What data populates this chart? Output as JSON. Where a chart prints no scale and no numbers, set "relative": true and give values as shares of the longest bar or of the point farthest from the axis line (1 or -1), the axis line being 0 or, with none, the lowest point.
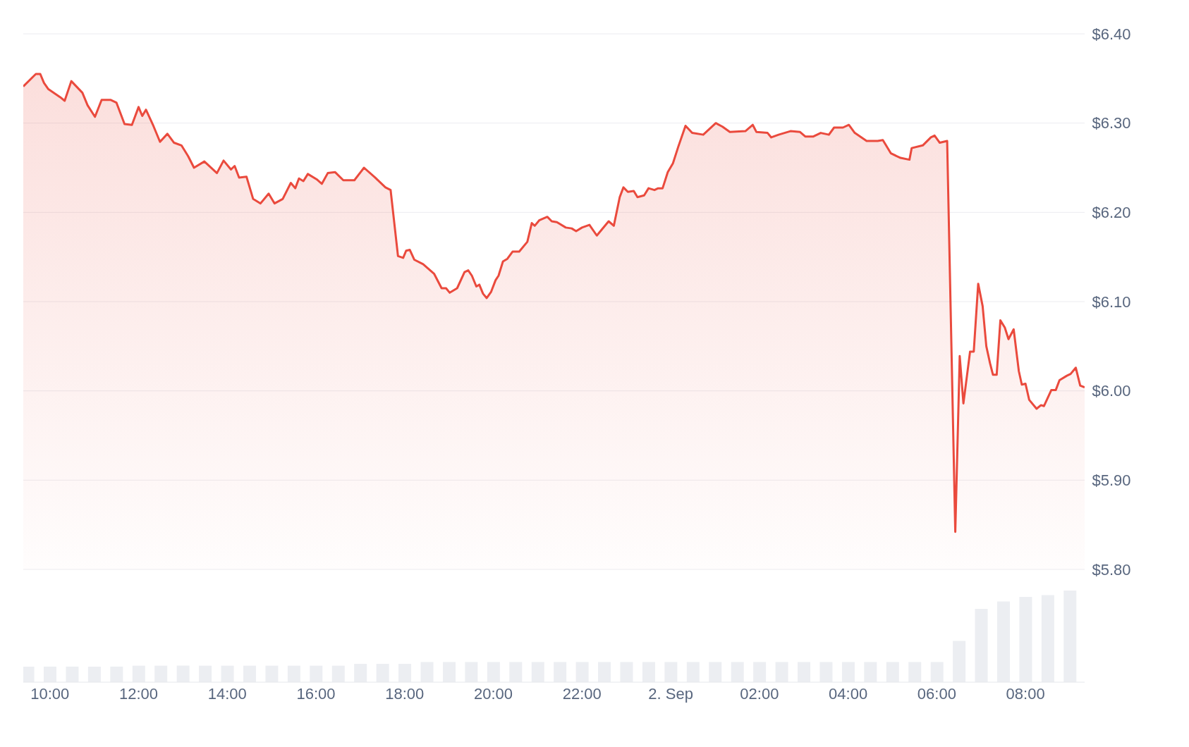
{
  "chart_data": [
    {
      "type": "area",
      "color": "#ea4a3d",
      "xlim": [
        "--09-01T09:24",
        "--09-02T09:20"
      ],
      "ylim": [
        5.8,
        6.4
      ],
      "yticks": [
        {
          "value": 5.8,
          "label": "$5.80"
        },
        {
          "value": 5.9,
          "label": "$5.90"
        },
        {
          "value": 6.0,
          "label": "$6.00"
        },
        {
          "value": 6.1,
          "label": "$6.10"
        },
        {
          "value": 6.2,
          "label": "$6.20"
        },
        {
          "value": 6.3,
          "label": "$6.30"
        },
        {
          "value": 6.4,
          "label": "$6.40"
        }
      ],
      "grid": "y",
      "tick_labels": "y",
      "x": [
        "--09-01T09:24",
        "--09-01T09:41",
        "--09-01T09:47",
        "--09-01T09:52",
        "--09-01T09:58",
        "--09-01T10:14",
        "--09-01T10:20",
        "--09-01T10:29",
        "--09-01T10:44",
        "--09-01T10:51",
        "--09-01T11:01",
        "--09-01T11:10",
        "--09-01T11:22",
        "--09-01T11:30",
        "--09-01T11:41",
        "--09-01T11:51",
        "--09-01T12:00",
        "--09-01T12:05",
        "--09-01T12:10",
        "--09-01T12:20",
        "--09-01T12:29",
        "--09-01T12:39",
        "--09-01T12:48",
        "--09-01T12:58",
        "--09-01T13:07",
        "--09-01T13:15",
        "--09-01T13:29",
        "--09-01T13:46",
        "--09-01T13:55",
        "--09-01T14:05",
        "--09-01T14:10",
        "--09-01T14:16",
        "--09-01T14:26",
        "--09-01T14:35",
        "--09-01T14:45",
        "--09-01T14:56",
        "--09-01T15:04",
        "--09-01T15:15",
        "--09-01T15:26",
        "--09-01T15:32",
        "--09-01T15:37",
        "--09-01T15:43",
        "--09-01T15:49",
        "--09-01T16:01",
        "--09-01T16:08",
        "--09-01T16:16",
        "--09-01T16:26",
        "--09-01T16:37",
        "--09-01T16:52",
        "--09-01T17:05",
        "--09-01T17:20",
        "--09-01T17:34",
        "--09-01T17:41",
        "--09-01T17:51",
        "--09-01T17:58",
        "--09-01T18:02",
        "--09-01T18:07",
        "--09-01T18:13",
        "--09-01T18:25",
        "--09-01T18:40",
        "--09-01T18:50",
        "--09-01T18:56",
        "--09-01T19:01",
        "--09-01T19:11",
        "--09-01T19:21",
        "--09-01T19:26",
        "--09-01T19:31",
        "--09-01T19:37",
        "--09-01T19:41",
        "--09-01T19:46",
        "--09-01T19:51",
        "--09-01T19:57",
        "--09-01T20:03",
        "--09-01T20:07",
        "--09-01T20:13",
        "--09-01T20:19",
        "--09-01T20:26",
        "--09-01T20:35",
        "--09-01T20:46",
        "--09-01T20:52",
        "--09-01T20:56",
        "--09-01T21:02",
        "--09-01T21:13",
        "--09-01T21:19",
        "--09-01T21:26",
        "--09-01T21:38",
        "--09-01T21:46",
        "--09-01T21:52",
        "--09-01T22:00",
        "--09-01T22:10",
        "--09-01T22:20",
        "--09-01T22:36",
        "--09-01T22:43",
        "--09-01T22:51",
        "--09-01T22:56",
        "--09-01T23:02",
        "--09-01T23:10",
        "--09-01T23:15",
        "--09-01T23:24",
        "--09-01T23:30",
        "--09-01T23:38",
        "--09-01T23:43",
        "--09-01T23:49",
        "--09-01T23:56",
        "--09-02T00:03",
        "--09-02T00:10",
        "--09-02T00:20",
        "--09-02T00:29",
        "--09-02T00:44",
        "--09-02T01:01",
        "--09-02T01:10",
        "--09-02T01:20",
        "--09-02T01:41",
        "--09-02T01:51",
        "--09-02T01:56",
        "--09-02T02:11",
        "--09-02T02:16",
        "--09-02T02:26",
        "--09-02T02:42",
        "--09-02T02:55",
        "--09-02T03:02",
        "--09-02T03:13",
        "--09-02T03:23",
        "--09-02T03:34",
        "--09-02T03:41",
        "--09-02T03:53",
        "--09-02T04:01",
        "--09-02T04:09",
        "--09-02T04:25",
        "--09-02T04:40",
        "--09-02T04:47",
        "--09-02T04:58",
        "--09-02T05:11",
        "--09-02T05:23",
        "--09-02T05:26",
        "--09-02T05:41",
        "--09-02T05:52",
        "--09-02T05:57",
        "--09-02T06:04",
        "--09-02T06:14",
        "--09-02T06:25",
        "--09-02T06:31",
        "--09-02T06:36",
        "--09-02T06:45",
        "--09-02T06:50",
        "--09-02T06:56",
        "--09-02T07:02",
        "--09-02T07:07",
        "--09-02T07:12",
        "--09-02T07:16",
        "--09-02T07:21",
        "--09-02T07:26",
        "--09-02T07:32",
        "--09-02T07:37",
        "--09-02T07:44",
        "--09-02T07:51",
        "--09-02T07:55",
        "--09-02T08:00",
        "--09-02T08:05",
        "--09-02T08:15",
        "--09-02T08:21",
        "--09-02T08:25",
        "--09-02T08:35",
        "--09-02T08:41",
        "--09-02T08:46",
        "--09-02T08:56",
        "--09-02T09:01",
        "--09-02T09:08",
        "--09-02T09:14",
        "--09-02T09:20"
      ],
      "values": [
        6.341,
        6.355,
        6.355,
        6.345,
        6.338,
        6.329,
        6.325,
        6.347,
        6.334,
        6.32,
        6.307,
        6.326,
        6.326,
        6.323,
        6.299,
        6.298,
        6.318,
        6.308,
        6.315,
        6.297,
        6.279,
        6.288,
        6.278,
        6.275,
        6.263,
        6.25,
        6.257,
        6.244,
        6.258,
        6.248,
        6.252,
        6.239,
        6.24,
        6.215,
        6.21,
        6.221,
        6.21,
        6.215,
        6.233,
        6.227,
        6.238,
        6.235,
        6.243,
        6.237,
        6.232,
        6.244,
        6.245,
        6.236,
        6.236,
        6.25,
        6.239,
        6.228,
        6.225,
        6.151,
        6.149,
        6.157,
        6.158,
        6.147,
        6.142,
        6.131,
        6.115,
        6.115,
        6.11,
        6.115,
        6.133,
        6.135,
        6.129,
        6.117,
        6.119,
        6.109,
        6.104,
        6.111,
        6.124,
        6.129,
        6.145,
        6.148,
        6.156,
        6.156,
        6.167,
        6.188,
        6.185,
        6.191,
        6.195,
        6.19,
        6.189,
        6.183,
        6.182,
        6.179,
        6.183,
        6.186,
        6.174,
        6.19,
        6.185,
        6.217,
        6.228,
        6.223,
        6.224,
        6.217,
        6.219,
        6.227,
        6.225,
        6.227,
        6.227,
        6.245,
        6.255,
        6.273,
        6.297,
        6.289,
        6.287,
        6.3,
        6.296,
        6.29,
        6.291,
        6.298,
        6.29,
        6.289,
        6.284,
        6.287,
        6.291,
        6.29,
        6.285,
        6.285,
        6.289,
        6.287,
        6.295,
        6.295,
        6.298,
        6.289,
        6.28,
        6.28,
        6.281,
        6.266,
        6.261,
        6.259,
        6.272,
        6.275,
        6.284,
        6.286,
        6.278,
        6.28,
        5.842,
        6.039,
        5.986,
        6.044,
        6.044,
        6.12,
        6.095,
        6.05,
        6.031,
        6.018,
        6.018,
        6.079,
        6.071,
        6.058,
        6.069,
        6.022,
        6.007,
        6.008,
        5.99,
        5.98,
        5.984,
        5.983,
        6.001,
        6.001,
        6.012,
        6.017,
        6.019,
        6.026,
        6.006,
        6.004
      ]
    },
    {
      "type": "bar",
      "relative": true,
      "color": "#eceef2",
      "xlim": [
        "--09-01T09:24",
        "--09-02T09:20"
      ],
      "xticks": [
        {
          "value": "--09-01T10:00",
          "label": "10:00"
        },
        {
          "value": "--09-01T12:00",
          "label": "12:00"
        },
        {
          "value": "--09-01T14:00",
          "label": "14:00"
        },
        {
          "value": "--09-01T16:00",
          "label": "16:00"
        },
        {
          "value": "--09-01T18:00",
          "label": "18:00"
        },
        {
          "value": "--09-01T20:00",
          "label": "20:00"
        },
        {
          "value": "--09-01T22:00",
          "label": "22:00"
        },
        {
          "value": "--09-02T00:00",
          "label": "2. Sep"
        },
        {
          "value": "--09-02T02:00",
          "label": "02:00"
        },
        {
          "value": "--09-02T04:00",
          "label": "04:00"
        },
        {
          "value": "--09-02T06:00",
          "label": "06:00"
        },
        {
          "value": "--09-02T08:00",
          "label": "08:00"
        }
      ],
      "x": [
        "--09-01T09:30",
        "--09-01T10:00",
        "--09-01T10:30",
        "--09-01T11:00",
        "--09-01T11:30",
        "--09-01T12:00",
        "--09-01T12:30",
        "--09-01T13:00",
        "--09-01T13:30",
        "--09-01T14:00",
        "--09-01T14:30",
        "--09-01T15:00",
        "--09-01T15:30",
        "--09-01T16:00",
        "--09-01T16:30",
        "--09-01T17:00",
        "--09-01T17:30",
        "--09-01T18:00",
        "--09-01T18:30",
        "--09-01T19:00",
        "--09-01T19:30",
        "--09-01T20:00",
        "--09-01T20:30",
        "--09-01T21:00",
        "--09-01T21:30",
        "--09-01T22:00",
        "--09-01T22:30",
        "--09-01T23:00",
        "--09-01T23:30",
        "--09-02T00:00",
        "--09-02T00:30",
        "--09-02T01:00",
        "--09-02T01:30",
        "--09-02T02:00",
        "--09-02T02:30",
        "--09-02T03:00",
        "--09-02T03:30",
        "--09-02T04:00",
        "--09-02T04:30",
        "--09-02T05:00",
        "--09-02T05:30",
        "--09-02T06:00",
        "--09-02T06:30",
        "--09-02T07:00",
        "--09-02T07:30",
        "--09-02T08:00",
        "--09-02T08:30",
        "--09-02T09:00"
      ],
      "values": [
        0.17,
        0.17,
        0.17,
        0.17,
        0.17,
        0.18,
        0.18,
        0.18,
        0.18,
        0.18,
        0.18,
        0.18,
        0.18,
        0.18,
        0.18,
        0.2,
        0.2,
        0.2,
        0.22,
        0.22,
        0.22,
        0.22,
        0.22,
        0.22,
        0.22,
        0.22,
        0.22,
        0.22,
        0.22,
        0.22,
        0.22,
        0.22,
        0.22,
        0.22,
        0.22,
        0.22,
        0.22,
        0.22,
        0.22,
        0.22,
        0.22,
        0.22,
        0.45,
        0.8,
        0.88,
        0.93,
        0.95,
        1.0
      ]
    }
  ]
}
